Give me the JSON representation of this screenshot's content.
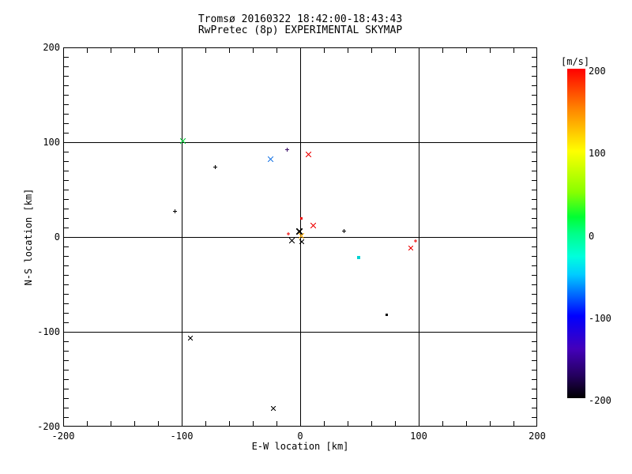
{
  "title": {
    "line1": "Tromsø 20160322 18:42:00-18:43:43",
    "line2": "RwPretec (8p) EXPERIMENTAL SKYMAP"
  },
  "chart_data": {
    "type": "scatter",
    "title": "Tromsø 20160322 18:42:00-18:43:43 RwPretec (8p) EXPERIMENTAL SKYMAP",
    "xlabel": "E-W location [km]",
    "ylabel": "N-S location [km]",
    "xlim": [
      -200,
      200
    ],
    "ylim": [
      -200,
      200
    ],
    "grid": true,
    "gridlines_x": [
      -100,
      0,
      100
    ],
    "gridlines_y": [
      -100,
      0,
      100
    ],
    "x_minor_step": 20,
    "y_minor_step": 10,
    "x_ticks": [
      {
        "value": -200,
        "label": "-200"
      },
      {
        "value": -100,
        "label": "-100"
      },
      {
        "value": 0,
        "label": "0"
      },
      {
        "value": 100,
        "label": "100"
      },
      {
        "value": 200,
        "label": "200"
      }
    ],
    "y_ticks": [
      {
        "value": -200,
        "label": "-200"
      },
      {
        "value": -100,
        "label": "-100"
      },
      {
        "value": 0,
        "label": "0"
      },
      {
        "value": 100,
        "label": "100"
      },
      {
        "value": 200,
        "label": "200"
      }
    ],
    "points": [
      {
        "x": -99,
        "y": 101,
        "marker": "x",
        "size": 7,
        "weight": 1,
        "color": "#00c832"
      },
      {
        "x": -72,
        "y": 74,
        "marker": "plus",
        "size": 5,
        "weight": 1,
        "color": "#000000"
      },
      {
        "x": -106,
        "y": 27,
        "marker": "plus",
        "size": 5,
        "weight": 1,
        "color": "#000000"
      },
      {
        "x": -25,
        "y": 82,
        "marker": "x",
        "size": 7,
        "weight": 1,
        "color": "#1e78e6"
      },
      {
        "x": -11,
        "y": 92,
        "marker": "plus",
        "size": 5,
        "weight": 1,
        "color": "#3a0d66"
      },
      {
        "x": 7,
        "y": 87,
        "marker": "x",
        "size": 7,
        "weight": 1,
        "color": "#ee0000"
      },
      {
        "x": 1,
        "y": 20,
        "marker": "dot",
        "size": 3,
        "weight": 1,
        "color": "#ee0000"
      },
      {
        "x": 11,
        "y": 12,
        "marker": "x",
        "size": 7,
        "weight": 1,
        "color": "#ee0000"
      },
      {
        "x": -10,
        "y": 3,
        "marker": "plus",
        "size": 4,
        "weight": 1,
        "color": "#ee0000"
      },
      {
        "x": -1,
        "y": 6,
        "marker": "x",
        "size": 8,
        "weight": 2,
        "color": "#000000"
      },
      {
        "x": 1,
        "y": 1,
        "marker": "x",
        "size": 7,
        "weight": 1,
        "color": "#ffaa00"
      },
      {
        "x": -7,
        "y": -4,
        "marker": "x",
        "size": 7,
        "weight": 1,
        "color": "#000000"
      },
      {
        "x": 1,
        "y": -5,
        "marker": "x",
        "size": 6,
        "weight": 1,
        "color": "#000000"
      },
      {
        "x": 37,
        "y": 6,
        "marker": "plus",
        "size": 5,
        "weight": 1,
        "color": "#000000"
      },
      {
        "x": 49,
        "y": -22,
        "marker": "dot",
        "size": 4,
        "weight": 1,
        "color": "#00d2d2"
      },
      {
        "x": 97,
        "y": -4,
        "marker": "plus",
        "size": 4,
        "weight": 1,
        "color": "#ee0000"
      },
      {
        "x": 93,
        "y": -12,
        "marker": "x",
        "size": 6,
        "weight": 1,
        "color": "#ee0000"
      },
      {
        "x": 73,
        "y": -82,
        "marker": "dot",
        "size": 3,
        "weight": 1,
        "color": "#000000"
      },
      {
        "x": -93,
        "y": -107,
        "marker": "x",
        "size": 6,
        "weight": 1,
        "color": "#000000"
      },
      {
        "x": -23,
        "y": -181,
        "marker": "x",
        "size": 6,
        "weight": 1,
        "color": "#000000"
      }
    ],
    "colorbar": {
      "label": "[m/s]",
      "min": -200,
      "max": 200,
      "ticks": [
        {
          "value": 200,
          "label": "200"
        },
        {
          "value": 100,
          "label": "100"
        },
        {
          "value": 0,
          "label": "0"
        },
        {
          "value": -100,
          "label": "-100"
        },
        {
          "value": -200,
          "label": "-200"
        }
      ],
      "stops": [
        {
          "pos": 0,
          "color": "#ff0000"
        },
        {
          "pos": 12.5,
          "color": "#ff8800"
        },
        {
          "pos": 25,
          "color": "#ffff00"
        },
        {
          "pos": 37.5,
          "color": "#88ff00"
        },
        {
          "pos": 45,
          "color": "#00ff33"
        },
        {
          "pos": 50,
          "color": "#00ff88"
        },
        {
          "pos": 57,
          "color": "#00ffdd"
        },
        {
          "pos": 62.5,
          "color": "#00ccff"
        },
        {
          "pos": 75,
          "color": "#0000ff"
        },
        {
          "pos": 85,
          "color": "#4400bb"
        },
        {
          "pos": 93,
          "color": "#250060"
        },
        {
          "pos": 100,
          "color": "#000000"
        }
      ]
    }
  }
}
